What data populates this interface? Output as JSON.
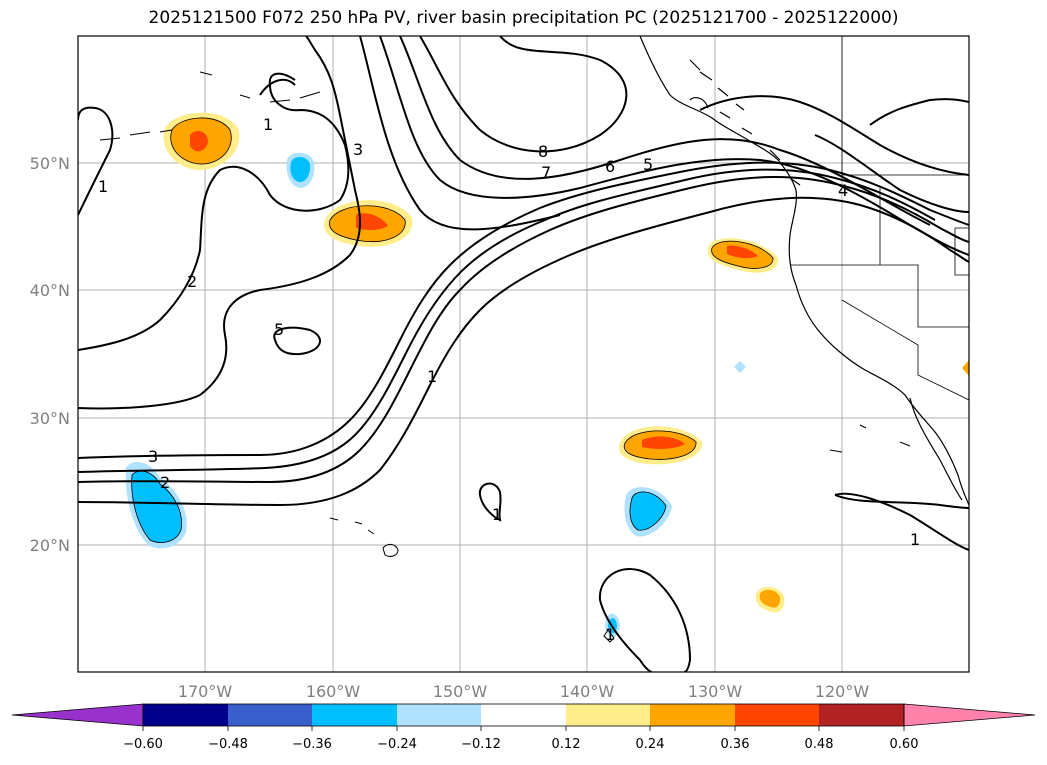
{
  "title": "2025121500 F072 250 hPa PV, river basin precipitation PC (2025121700 - 2025122000)",
  "map": {
    "lon_labels": [
      "170°W",
      "160°W",
      "150°W",
      "140°W",
      "130°W",
      "120°W"
    ],
    "lat_labels": [
      "50°N",
      "40°N",
      "30°N",
      "20°N"
    ],
    "contour_labels": [
      "1",
      "1",
      "2",
      "3",
      "5",
      "1",
      "8",
      "7",
      "6",
      "5",
      "4",
      "3",
      "2",
      "1",
      "1",
      "1"
    ]
  },
  "colorbar": {
    "ticks": [
      "−0.60",
      "−0.48",
      "−0.36",
      "−0.24",
      "−0.12",
      "0.12",
      "0.24",
      "0.36",
      "0.48",
      "0.60"
    ],
    "colors": [
      "#9932cc",
      "#00008b",
      "#3a5fcd",
      "#00bfff",
      "#b0e2ff",
      "#ffffff",
      "#ffec8b",
      "#ffa500",
      "#ff4500",
      "#b22222",
      "#ff82ab"
    ]
  },
  "colors": {
    "contour": "#000000",
    "grid": "#b0b0b0",
    "coast": "#000000"
  }
}
